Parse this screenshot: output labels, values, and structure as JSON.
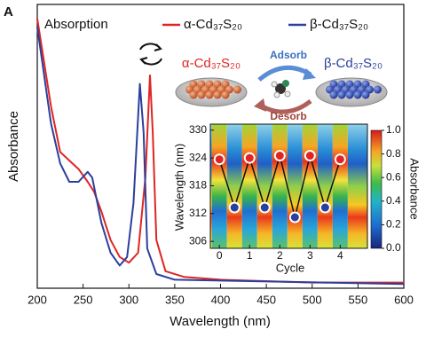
{
  "chart_data": [
    {
      "type": "line",
      "panel_label": "A",
      "annotation": "Absorption",
      "xlabel": "Wavelength (nm)",
      "ylabel": "Absorbance",
      "xlim": [
        200,
        600
      ],
      "xticks": [
        200,
        250,
        300,
        350,
        400,
        450,
        500,
        550,
        600
      ],
      "ylim": [
        0,
        1
      ],
      "series": [
        {
          "name": "α-Cd₃₇S₂₀",
          "color": "#e02424",
          "x": [
            200,
            215,
            225,
            235,
            245,
            255,
            262,
            270,
            280,
            290,
            300,
            310,
            318,
            323,
            326,
            330,
            340,
            360,
            400,
            500,
            600
          ],
          "values": [
            0.95,
            0.64,
            0.48,
            0.45,
            0.42,
            0.375,
            0.34,
            0.27,
            0.17,
            0.11,
            0.09,
            0.125,
            0.39,
            0.75,
            0.55,
            0.17,
            0.06,
            0.04,
            0.03,
            0.02,
            0.02
          ]
        },
        {
          "name": "β-Cd₃₇S₂₀",
          "color": "#2b3f9c",
          "x": [
            200,
            215,
            225,
            235,
            245,
            255,
            260,
            270,
            280,
            290,
            298,
            305,
            312,
            316,
            320,
            330,
            350,
            600
          ],
          "values": [
            0.92,
            0.58,
            0.44,
            0.375,
            0.375,
            0.41,
            0.39,
            0.23,
            0.125,
            0.08,
            0.11,
            0.3,
            0.72,
            0.55,
            0.14,
            0.05,
            0.03,
            0.015
          ]
        }
      ],
      "diagram": {
        "left_label": "α-Cd₃₇S₂₀",
        "right_label": "β-Cd₃₇S₂₀",
        "adsorb": "Adsorb",
        "desorb": "Desorb"
      }
    },
    {
      "type": "scatter",
      "xlabel": "Cycle",
      "ylabel": "Wavelength (nm)",
      "xlim": [
        -0.3,
        4.9
      ],
      "xticks": [
        0,
        1,
        2,
        3,
        4
      ],
      "ylim": [
        304.5,
        331.3
      ],
      "yticks": [
        306,
        312,
        318,
        324,
        330
      ],
      "line_color": "#111111",
      "series": [
        {
          "x": [
            0,
            0.5,
            1,
            1.5,
            2,
            2.5,
            3,
            3.5,
            4
          ],
          "values": [
            323.7,
            313.3,
            324,
            313.3,
            324.5,
            311.2,
            324.5,
            313.3,
            323.7
          ],
          "colors": [
            "#e02424",
            "#2b3f9c",
            "#e02424",
            "#2b3f9c",
            "#e02424",
            "#2b3f9c",
            "#e02424",
            "#2b3f9c",
            "#e02424"
          ]
        }
      ],
      "colorbar": {
        "label": "Absorbance",
        "lim": [
          0,
          1
        ],
        "ticks": [
          {
            "value": 0,
            "label": "0.0"
          },
          {
            "value": 0.2,
            "label": "0.2"
          },
          {
            "value": 0.4,
            "label": "0.4"
          },
          {
            "value": 0.6,
            "label": "0.6"
          },
          {
            "value": 0.8,
            "label": "0.8"
          },
          {
            "value": 1,
            "label": "1.0"
          }
        ]
      }
    }
  ]
}
